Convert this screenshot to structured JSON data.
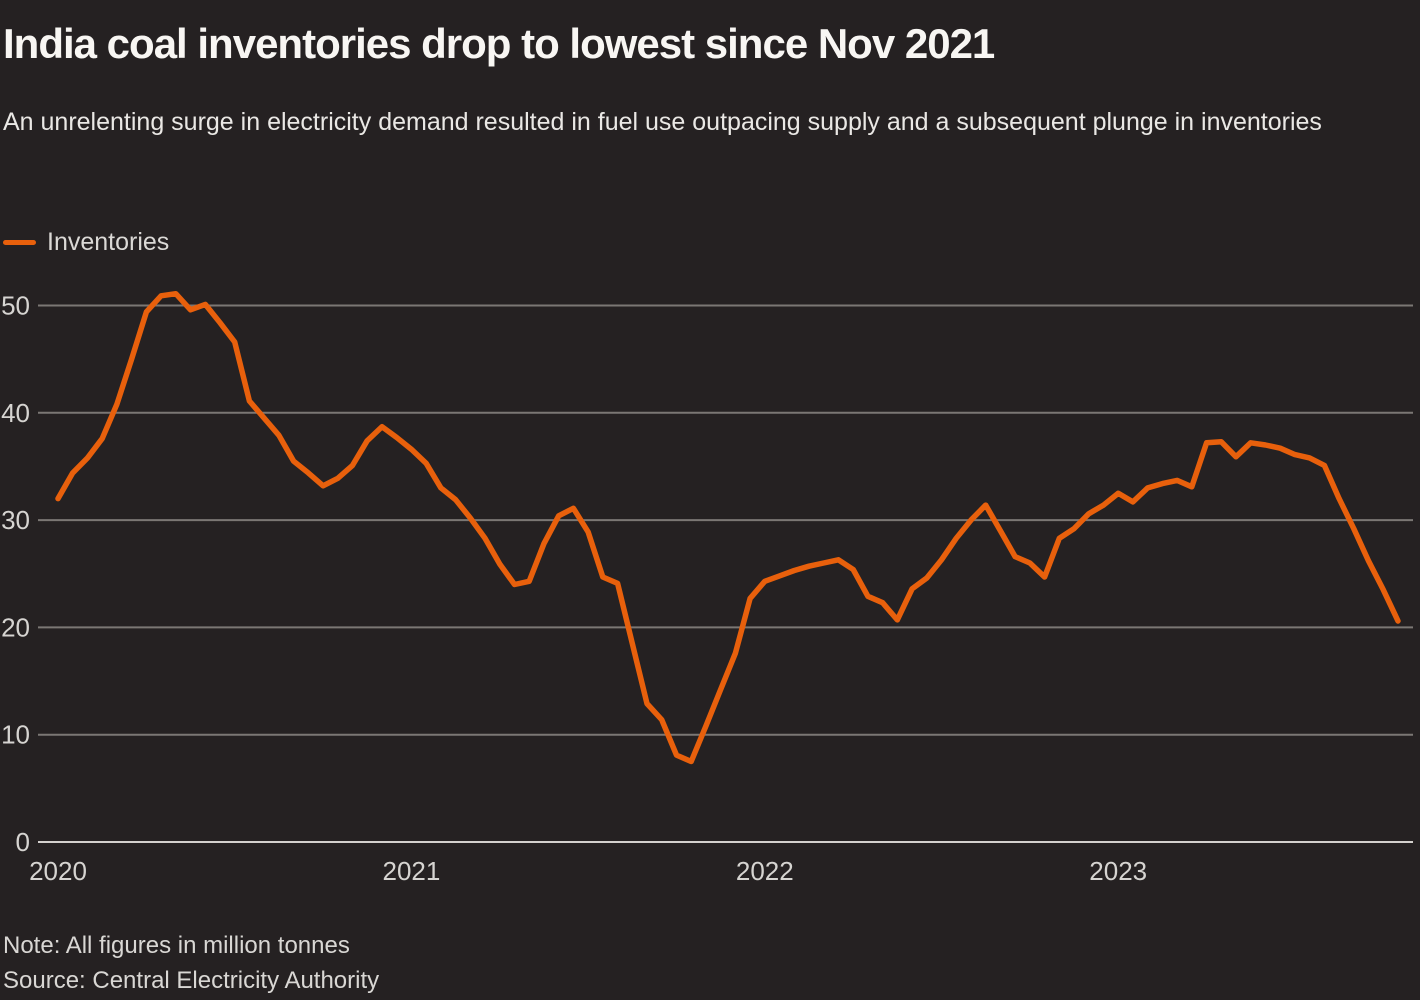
{
  "header": {
    "title": "India coal inventories drop to lowest since Nov 2021",
    "subtitle": "An unrelenting surge in electricity demand resulted in fuel use outpacing supply and a subsequent plunge in inventories"
  },
  "legend": {
    "label": "Inventories"
  },
  "footer": {
    "note": "Note: All figures in million tonnes",
    "source": "Source: Central Electricity Authority"
  },
  "colors": {
    "background": "#252122",
    "line": "#e8600c",
    "gridline": "#7b7774",
    "baseline": "#d4d1ce",
    "axis_text": "#d6d4d1"
  },
  "chart_data": {
    "type": "line",
    "title": "India coal inventories drop to lowest since Nov 2021",
    "unit": "million tonnes",
    "frequency": "semi-monthly",
    "x_start": "2020-01",
    "x_end": "2023-10",
    "xlabel": "",
    "ylabel": "",
    "ylim": [
      0,
      52
    ],
    "grid": "horizontal",
    "legend_position": "top-left",
    "y_ticks": [
      0,
      10,
      20,
      30,
      40,
      50
    ],
    "x_ticks": [
      {
        "label": "2020",
        "index": 0
      },
      {
        "label": "2021",
        "index": 24
      },
      {
        "label": "2022",
        "index": 48
      },
      {
        "label": "2023",
        "index": 72
      }
    ],
    "series": [
      {
        "name": "Inventories",
        "values": [
          32.0,
          34.4,
          35.8,
          37.6,
          40.8,
          45.0,
          49.4,
          50.9,
          51.1,
          49.6,
          50.1,
          48.4,
          46.6,
          41.1,
          39.5,
          37.9,
          35.5,
          34.4,
          33.2,
          33.9,
          35.1,
          37.4,
          38.7,
          37.7,
          36.6,
          35.3,
          33.0,
          31.9,
          30.2,
          28.3,
          25.9,
          24.0,
          24.3,
          27.8,
          30.4,
          31.1,
          28.9,
          24.7,
          24.1,
          18.5,
          12.9,
          11.4,
          8.1,
          7.5,
          10.8,
          14.2,
          17.6,
          22.7,
          24.3,
          24.8,
          25.3,
          25.7,
          26.0,
          26.3,
          25.4,
          22.9,
          22.3,
          20.7,
          23.6,
          24.6,
          26.3,
          28.3,
          30.0,
          31.4,
          29.0,
          26.6,
          26.0,
          24.7,
          28.3,
          29.2,
          30.6,
          31.4,
          32.5,
          31.7,
          33.0,
          33.4,
          33.7,
          33.1,
          37.2,
          37.3,
          35.9,
          37.2,
          37.0,
          36.7,
          36.1,
          35.8,
          35.1,
          32.0,
          29.2,
          26.2,
          23.5,
          20.6
        ]
      }
    ]
  }
}
